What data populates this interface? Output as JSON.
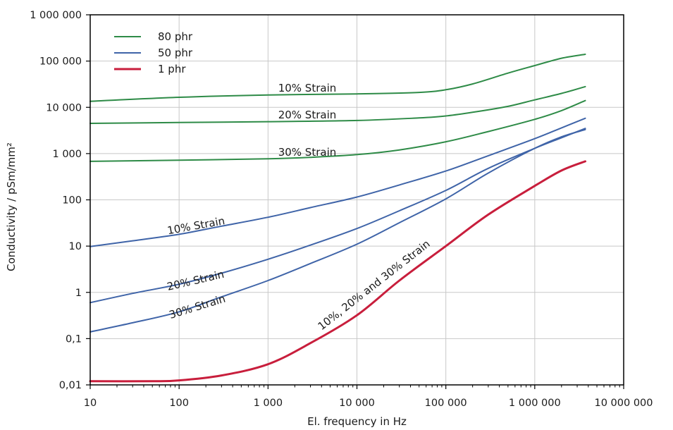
{
  "chart_data": {
    "type": "line",
    "xscale": "log",
    "yscale": "log",
    "xlim": [
      10,
      10000000
    ],
    "ylim": [
      0.01,
      1000000
    ],
    "grid": true,
    "legend_position": "top-left",
    "xlabel": "El. frequency in Hz",
    "ylabel": "Conductivity / pSm/mm²",
    "xticks": [
      {
        "value": 10,
        "label": "10"
      },
      {
        "value": 100,
        "label": "100"
      },
      {
        "value": 1000,
        "label": "1 000"
      },
      {
        "value": 10000,
        "label": "10 000"
      },
      {
        "value": 100000,
        "label": "100 000"
      },
      {
        "value": 1000000,
        "label": "1 000 000"
      },
      {
        "value": 10000000,
        "label": "10 000 000"
      }
    ],
    "yticks": [
      {
        "value": 0.01,
        "label": "0,01"
      },
      {
        "value": 0.1,
        "label": "0,1"
      },
      {
        "value": 1,
        "label": "1"
      },
      {
        "value": 10,
        "label": "10"
      },
      {
        "value": 100,
        "label": "100"
      },
      {
        "value": 1000,
        "label": "1 000"
      },
      {
        "value": 10000,
        "label": "10 000"
      },
      {
        "value": 100000,
        "label": "100 000"
      },
      {
        "value": 1000000,
        "label": "1 000 000"
      }
    ],
    "legend": [
      {
        "label": "80 phr",
        "color": "#2e8b47"
      },
      {
        "label": "50 phr",
        "color": "#3f64a8"
      },
      {
        "label": "1 phr",
        "color": "#c81e3c"
      }
    ],
    "series": [
      {
        "group": "80 phr",
        "strain": "10% Strain",
        "color": "#2e8b47",
        "width": 2,
        "points": [
          [
            10,
            13500
          ],
          [
            100,
            16500
          ],
          [
            1000,
            18500
          ],
          [
            10000,
            19500
          ],
          [
            50000,
            21000
          ],
          [
            100000,
            24000
          ],
          [
            200000,
            32000
          ],
          [
            500000,
            55000
          ],
          [
            1000000,
            80000
          ],
          [
            2000000,
            115000
          ],
          [
            3700000,
            140000
          ]
        ]
      },
      {
        "group": "80 phr",
        "strain": "20% Strain",
        "color": "#2e8b47",
        "width": 2,
        "points": [
          [
            10,
            4500
          ],
          [
            100,
            4700
          ],
          [
            1000,
            4900
          ],
          [
            10000,
            5200
          ],
          [
            50000,
            5900
          ],
          [
            100000,
            6500
          ],
          [
            200000,
            7800
          ],
          [
            500000,
            10500
          ],
          [
            1000000,
            14500
          ],
          [
            2000000,
            20000
          ],
          [
            3700000,
            28000
          ]
        ]
      },
      {
        "group": "80 phr",
        "strain": "30% Strain",
        "color": "#2e8b47",
        "width": 2,
        "points": [
          [
            10,
            680
          ],
          [
            100,
            720
          ],
          [
            1000,
            770
          ],
          [
            3000,
            830
          ],
          [
            10000,
            950
          ],
          [
            30000,
            1200
          ],
          [
            100000,
            1800
          ],
          [
            300000,
            3000
          ],
          [
            1000000,
            5500
          ],
          [
            2000000,
            8500
          ],
          [
            3700000,
            14000
          ]
        ]
      },
      {
        "group": "50 phr",
        "strain": "10% Strain",
        "color": "#3f64a8",
        "width": 2,
        "points": [
          [
            10,
            9.8
          ],
          [
            30,
            13
          ],
          [
            100,
            18
          ],
          [
            300,
            27
          ],
          [
            1000,
            42
          ],
          [
            3000,
            68
          ],
          [
            10000,
            115
          ],
          [
            30000,
            210
          ],
          [
            100000,
            420
          ],
          [
            300000,
            900
          ],
          [
            1000000,
            2100
          ],
          [
            2000000,
            3600
          ],
          [
            3700000,
            5800
          ]
        ]
      },
      {
        "group": "50 phr",
        "strain": "20% Strain",
        "color": "#3f64a8",
        "width": 2,
        "points": [
          [
            10,
            0.6
          ],
          [
            30,
            0.95
          ],
          [
            100,
            1.5
          ],
          [
            300,
            2.6
          ],
          [
            1000,
            5.2
          ],
          [
            3000,
            10.5
          ],
          [
            10000,
            24
          ],
          [
            30000,
            58
          ],
          [
            100000,
            160
          ],
          [
            300000,
            480
          ],
          [
            1000000,
            1300
          ],
          [
            2000000,
            2200
          ],
          [
            3700000,
            3500
          ]
        ]
      },
      {
        "group": "50 phr",
        "strain": "30% Strain",
        "color": "#3f64a8",
        "width": 2,
        "points": [
          [
            10,
            0.14
          ],
          [
            30,
            0.22
          ],
          [
            100,
            0.38
          ],
          [
            300,
            0.8
          ],
          [
            1000,
            1.8
          ],
          [
            3000,
            4.2
          ],
          [
            10000,
            11
          ],
          [
            30000,
            32
          ],
          [
            100000,
            105
          ],
          [
            300000,
            380
          ],
          [
            1000000,
            1300
          ],
          [
            2000000,
            2300
          ],
          [
            3700000,
            3300
          ]
        ]
      },
      {
        "group": "1 phr",
        "strain": "10%, 20% and 30% Strain",
        "color": "#c81e3c",
        "width": 3,
        "points": [
          [
            10,
            0.012
          ],
          [
            50,
            0.012
          ],
          [
            100,
            0.0125
          ],
          [
            300,
            0.016
          ],
          [
            1000,
            0.028
          ],
          [
            3000,
            0.08
          ],
          [
            10000,
            0.32
          ],
          [
            30000,
            1.8
          ],
          [
            100000,
            10
          ],
          [
            300000,
            48
          ],
          [
            1000000,
            200
          ],
          [
            2000000,
            430
          ],
          [
            3700000,
            680
          ]
        ]
      }
    ],
    "annotations": [
      {
        "text": "10% Strain",
        "x": 1300,
        "y": 22000,
        "angle": 0
      },
      {
        "text": "20% Strain",
        "x": 1300,
        "y": 5800,
        "angle": 0
      },
      {
        "text": "30% Strain",
        "x": 1300,
        "y": 900,
        "angle": 0
      },
      {
        "text": "10% Strain",
        "x": 75,
        "y": 18,
        "angle": -10
      },
      {
        "text": "20% Strain",
        "x": 75,
        "y": 1.1,
        "angle": -13
      },
      {
        "text": "30% Strain",
        "x": 80,
        "y": 0.27,
        "angle": -17
      },
      {
        "text": "10%, 20% and 30% Strain",
        "x": 4000,
        "y": 0.15,
        "angle": -38
      }
    ]
  }
}
